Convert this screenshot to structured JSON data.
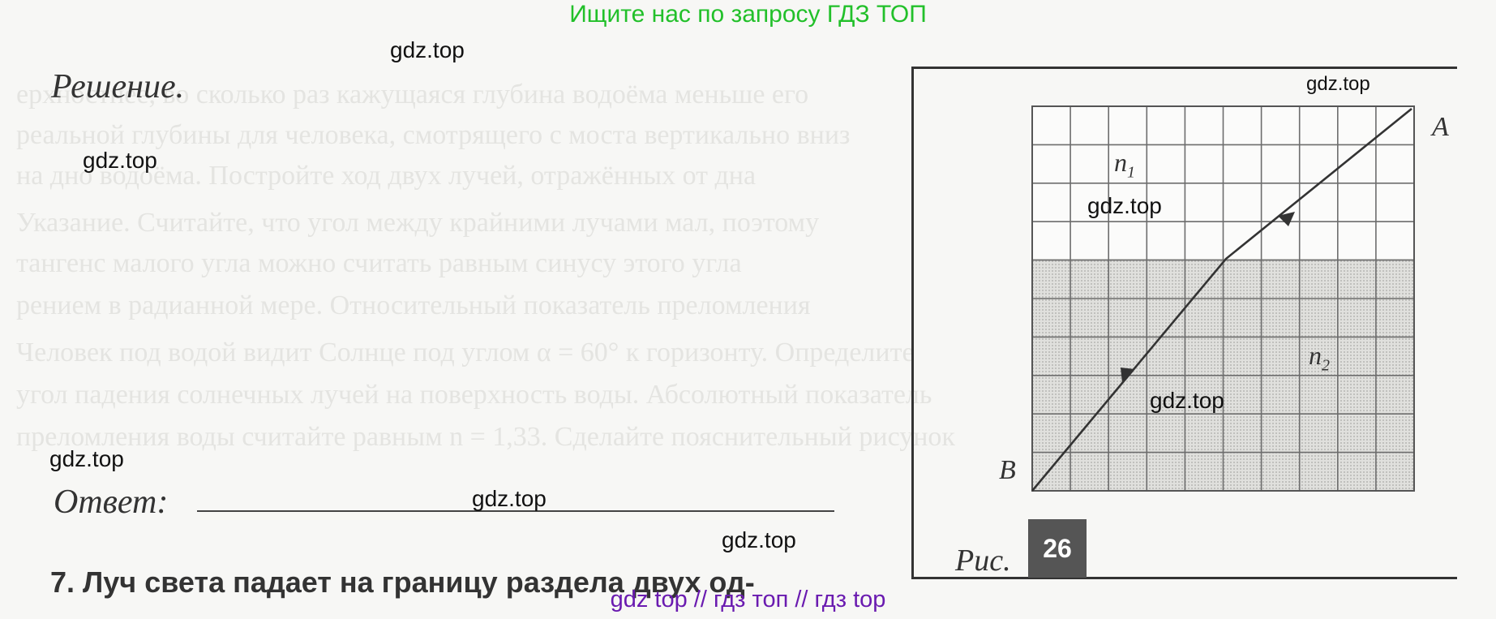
{
  "banner": "Ищите нас по запросу ГДЗ ТОП",
  "watermarks": [
    "gdz.top",
    "gdz.top",
    "gdz.top",
    "gdz.top",
    "gdz.top",
    "gdz.top",
    "gdz.top",
    "gdz.top"
  ],
  "solution_heading": "Решение.",
  "answer_label": "Ответ:",
  "next_task": "7. Луч света падает на границу раздела двух од-",
  "figure": {
    "label_a": "A",
    "label_b": "B",
    "label_n1": "n",
    "sub_n1": "1",
    "label_n2": "n",
    "sub_n2": "2",
    "caption": "Рис.",
    "number": "26"
  },
  "footer": "gdz top  //  гдз топ  //  гдз top"
}
